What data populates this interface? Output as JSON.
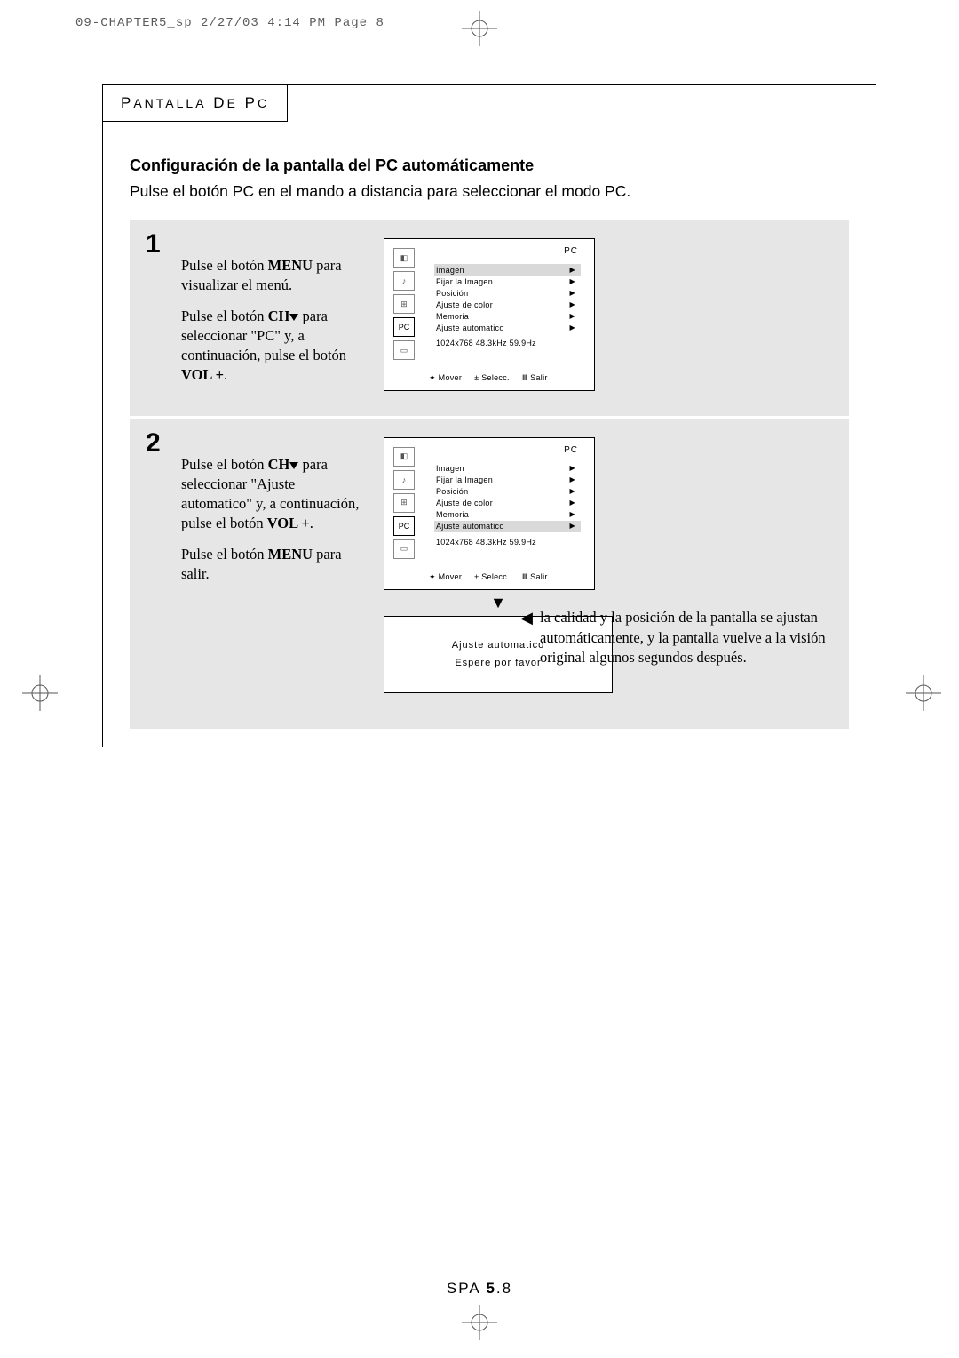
{
  "print_header": "09-CHAPTER5_sp  2/27/03 4:14 PM  Page 8",
  "section_title_html": "P<span style='font-size:14px'>ANTALLA</span> D<span style='font-size:14px'>E</span> P<span style='font-size:14px'>C</span>",
  "heading": "Configuración de la pantalla del PC automáticamente",
  "intro": "Pulse el botón PC en el mando a distancia para seleccionar el modo PC.",
  "step1_num": "1",
  "step1_p1_html": "Pulse el botón <b>MENU</b> para visualizar el menú.",
  "step1_p2_html": "Pulse el botón <b>CH</b><span class='tri-down'></span> para seleccionar \"PC\" y, a continuación, pulse el botón <b>VOL +</b>.",
  "step2_num": "2",
  "step2_p1_html": "Pulse el botón <b>CH</b><span class='tri-down'></span> para seleccionar \"Ajuste automatico\" y, a continuación, pulse el botón <b>VOL +</b>.",
  "step2_p2_html": "Pulse el botón <b>MENU</b> para salir.",
  "osd": {
    "title": "PC",
    "items": [
      "Imagen",
      "Fijar la Imagen",
      "Posición",
      "Ajuste de color",
      "Memoria",
      "Ajuste automatico"
    ],
    "sel_step1": "Imagen",
    "sel_step2": "Ajuste automatico",
    "resolution": "1024x768  48.3kHz 59.9Hz",
    "footer_mover": "Mover",
    "footer_selecc": "Selecc.",
    "footer_salir": "Salir"
  },
  "msgbox": {
    "line1": "Ajuste automatico",
    "line2": "Espere por favor"
  },
  "result_text": "la calidad y la posición de la pantalla se ajustan automáticamente, y la pantalla vuelve a la visión original algunos segundos después.",
  "page_num_prefix": "SPA ",
  "page_num_bold": "5",
  "page_num_suffix": ".8"
}
